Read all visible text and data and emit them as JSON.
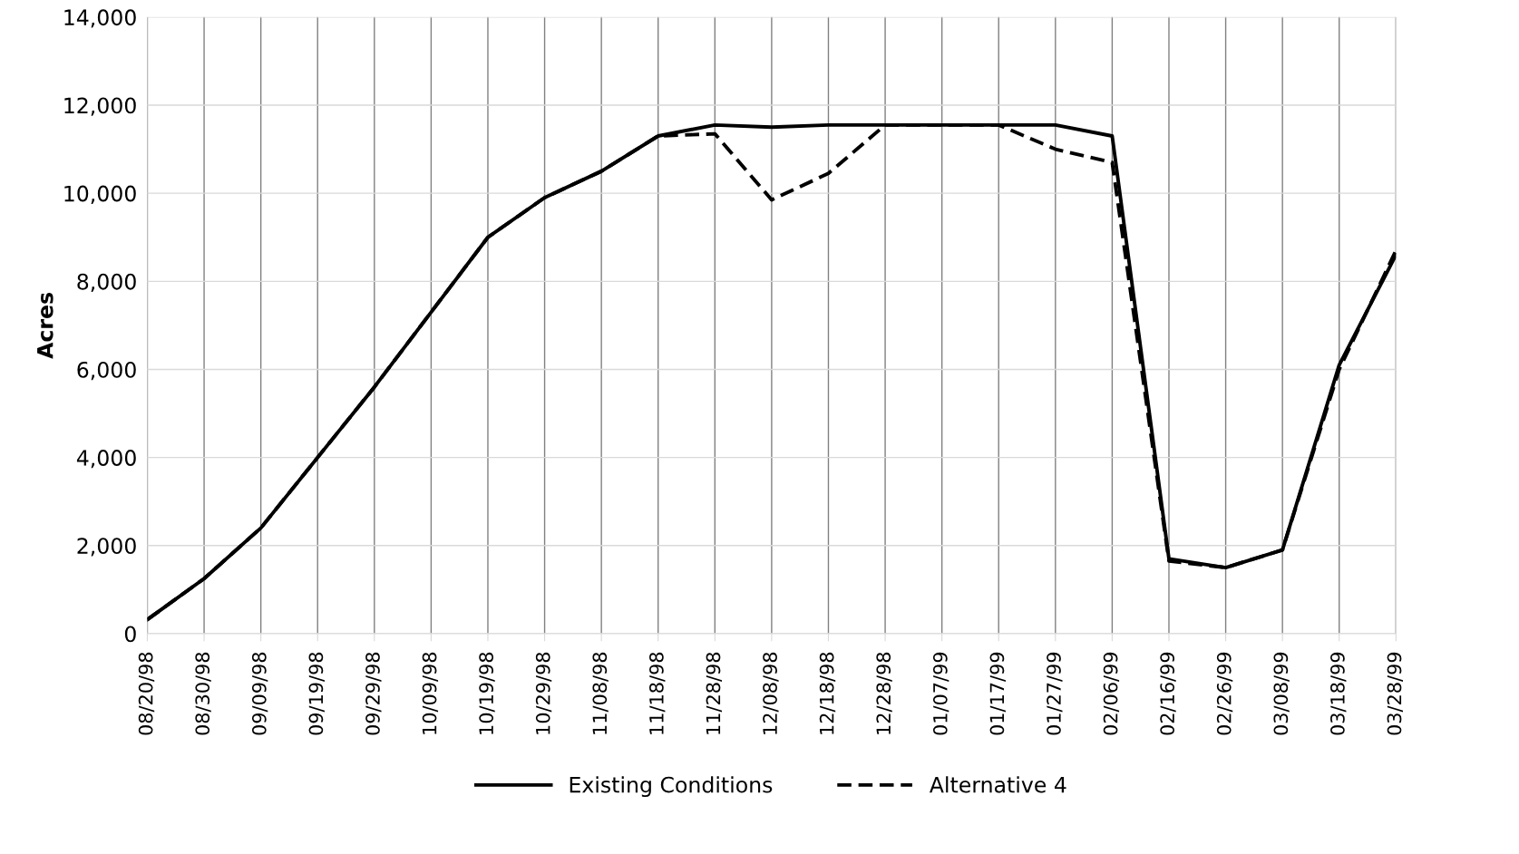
{
  "chart_data": {
    "type": "line",
    "ylabel": "Acres",
    "categories": [
      "08/20/98",
      "08/30/98",
      "09/09/98",
      "09/19/98",
      "09/29/98",
      "10/09/98",
      "10/19/98",
      "10/29/98",
      "11/08/98",
      "11/18/98",
      "11/28/98",
      "12/08/98",
      "12/18/98",
      "12/28/98",
      "01/07/99",
      "01/17/99",
      "01/27/99",
      "02/06/99",
      "02/16/99",
      "02/26/99",
      "03/08/99",
      "03/18/99",
      "03/28/99"
    ],
    "series": [
      {
        "name": "Existing Conditions",
        "color": "#000000",
        "line_style": "solid",
        "values": [
          320,
          1250,
          2400,
          4000,
          5600,
          7300,
          9000,
          9900,
          10500,
          11300,
          11550,
          11500,
          11550,
          11550,
          11550,
          11550,
          11550,
          11300,
          1700,
          1500,
          1900,
          6100,
          8600
        ]
      },
      {
        "name": "Alternative 4",
        "color": "#000000",
        "line_style": "dashed",
        "values": [
          320,
          1250,
          2400,
          4000,
          5600,
          7300,
          9000,
          9900,
          10500,
          11300,
          11350,
          9850,
          10450,
          11550,
          11550,
          11550,
          11000,
          10700,
          1650,
          1500,
          1900,
          6000,
          8700
        ]
      }
    ],
    "ylim": [
      0,
      14000
    ],
    "yticks": [
      {
        "value": 0,
        "label": "0"
      },
      {
        "value": 2000,
        "label": "2,000"
      },
      {
        "value": 4000,
        "label": "4,000"
      },
      {
        "value": 6000,
        "label": "6,000"
      },
      {
        "value": 8000,
        "label": "8,000"
      },
      {
        "value": 10000,
        "label": "10,000"
      },
      {
        "value": 12000,
        "label": "12,000"
      },
      {
        "value": 14000,
        "label": "14,000"
      }
    ],
    "grid": true,
    "legend": "bottom",
    "marker": "none"
  }
}
